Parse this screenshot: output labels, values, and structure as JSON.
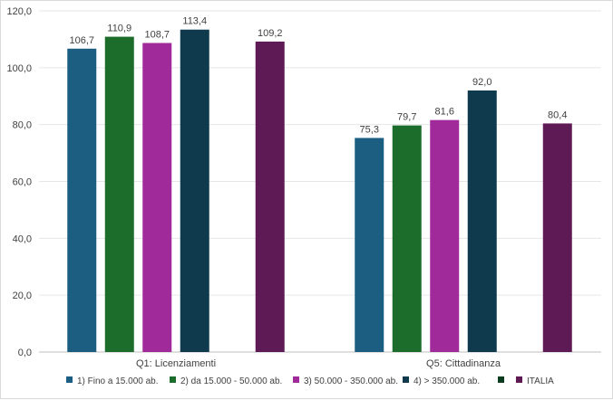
{
  "chart_data": {
    "type": "bar",
    "title": "",
    "xlabel": "",
    "ylabel": "",
    "ylim": [
      0,
      120
    ],
    "yticks": [
      "0,0",
      "20,0",
      "40,0",
      "60,0",
      "80,0",
      "100,0",
      "120,0"
    ],
    "ytick_values": [
      0,
      20,
      40,
      60,
      80,
      100,
      120
    ],
    "grid": true,
    "legend_position": "bottom",
    "categories": [
      "Q1: Licenziamenti",
      "Q5: Cittadinanza"
    ],
    "series": [
      {
        "name": "1) Fino a 15.000 ab.",
        "color": "#1b5e82",
        "values": [
          106.7,
          75.3
        ],
        "labels": [
          "106,7",
          "75,3"
        ]
      },
      {
        "name": "2) da 15.000 - 50.000 ab.",
        "color": "#1c6d2c",
        "values": [
          110.9,
          79.7
        ],
        "labels": [
          "110,9",
          "79,7"
        ]
      },
      {
        "name": "3) 50.000 - 350.000 ab.",
        "color": "#a12a9a",
        "values": [
          108.7,
          81.6
        ],
        "labels": [
          "108,7",
          "81,6"
        ]
      },
      {
        "name": "4) > 350.000 ab.",
        "color": "#0f3a4d",
        "values": [
          113.4,
          92.0
        ],
        "labels": [
          "113,4",
          "92,0"
        ]
      },
      {
        "name": "",
        "color": "#0a3d1f",
        "values": [
          null,
          null
        ],
        "labels": [
          "",
          ""
        ]
      },
      {
        "name": "ITALIA",
        "color": "#5e1a55",
        "values": [
          109.2,
          80.4
        ],
        "labels": [
          "109,2",
          "80,4"
        ]
      }
    ]
  }
}
